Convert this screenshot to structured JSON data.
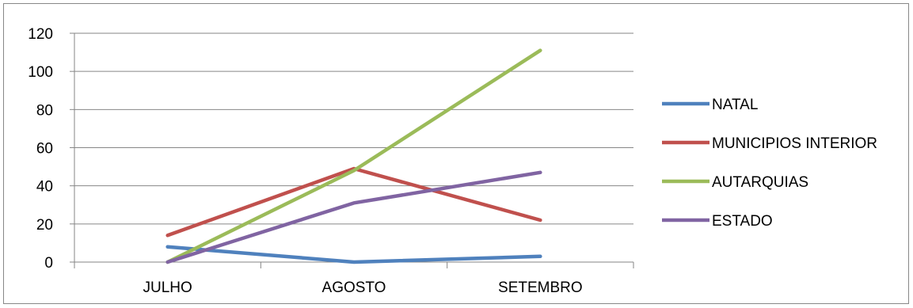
{
  "chart_data": {
    "type": "line",
    "categories": [
      "JULHO",
      "AGOSTO",
      "SETEMBRO"
    ],
    "series": [
      {
        "name": "NATAL",
        "color": "#4f81bd",
        "values": [
          8,
          0,
          3
        ]
      },
      {
        "name": "MUNICIPIOS INTERIOR",
        "color": "#c0504d",
        "values": [
          14,
          49,
          22
        ]
      },
      {
        "name": "AUTARQUIAS",
        "color": "#9bbb59",
        "values": [
          0,
          48,
          111
        ]
      },
      {
        "name": "ESTADO",
        "color": "#8064a2",
        "values": [
          0,
          31,
          47
        ]
      }
    ],
    "y_ticks": [
      "0",
      "20",
      "40",
      "60",
      "80",
      "100",
      "120"
    ],
    "ylim": [
      0,
      120
    ],
    "grid": true,
    "legend_position": "right"
  }
}
